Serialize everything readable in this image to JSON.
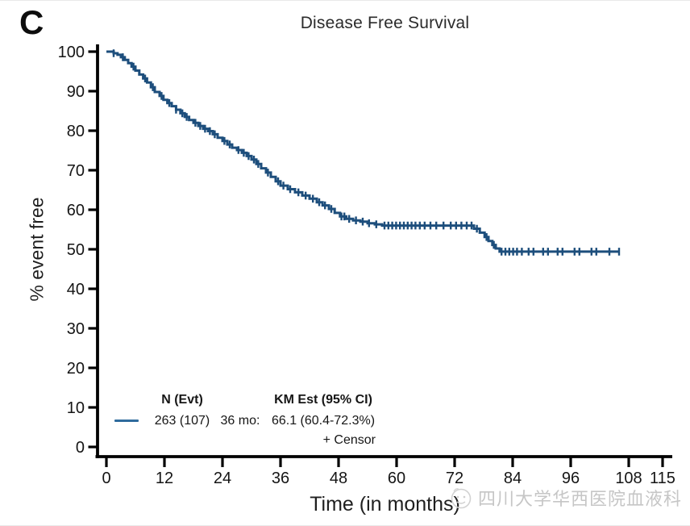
{
  "panel_label": "C",
  "chart_data": {
    "type": "line",
    "subtype": "kaplan-meier-step-curve",
    "title": "Disease Free Survival",
    "xlabel": "Time (in months)",
    "ylabel": "% event free",
    "xlim": [
      0,
      115
    ],
    "ylim": [
      0,
      100
    ],
    "x_ticks": [
      0,
      12,
      24,
      36,
      48,
      60,
      72,
      84,
      96,
      108,
      115
    ],
    "y_ticks": [
      0,
      10,
      20,
      30,
      40,
      50,
      60,
      70,
      80,
      90,
      100
    ],
    "grid": false,
    "legend_position": "bottom-left-inside",
    "axis_color": "#000000",
    "series": [
      {
        "name": "263 (107)",
        "n": 263,
        "events": 107,
        "color": "#1d4e7c",
        "km_estimate": {
          "timepoint_months": 36,
          "estimate_pct": 66.1,
          "ci95_pct": [
            60.4,
            72.3
          ]
        },
        "steps": [
          [
            0,
            100
          ],
          [
            1.5,
            99.6
          ],
          [
            2.3,
            99.2
          ],
          [
            3,
            98.6
          ],
          [
            3.8,
            97.9
          ],
          [
            4.5,
            97.1
          ],
          [
            5.2,
            96.2
          ],
          [
            6,
            95.2
          ],
          [
            6.8,
            94.2
          ],
          [
            7.6,
            93.2
          ],
          [
            8.4,
            92.2
          ],
          [
            9.2,
            91.0
          ],
          [
            10,
            89.8
          ],
          [
            11,
            88.8
          ],
          [
            11.8,
            87.8
          ],
          [
            12.6,
            87.0
          ],
          [
            13.5,
            86.2
          ],
          [
            14.4,
            85.3
          ],
          [
            15.3,
            84.4
          ],
          [
            16.2,
            83.5
          ],
          [
            17.1,
            82.7
          ],
          [
            18,
            82.0
          ],
          [
            19,
            81.2
          ],
          [
            20,
            80.5
          ],
          [
            21,
            79.9
          ],
          [
            22,
            79.1
          ],
          [
            23,
            78.2
          ],
          [
            24,
            77.4
          ],
          [
            25,
            76.5
          ],
          [
            26,
            75.7
          ],
          [
            27,
            75.1
          ],
          [
            28,
            74.4
          ],
          [
            29,
            73.6
          ],
          [
            30,
            72.7
          ],
          [
            31,
            71.6
          ],
          [
            32,
            70.5
          ],
          [
            33,
            69.4
          ],
          [
            34,
            68.3
          ],
          [
            35,
            67.2
          ],
          [
            36,
            66.1
          ],
          [
            37.5,
            65.2
          ],
          [
            39,
            64.4
          ],
          [
            40.5,
            63.6
          ],
          [
            42,
            62.8
          ],
          [
            43.5,
            61.9
          ],
          [
            44.7,
            61.1
          ],
          [
            46,
            60.2
          ],
          [
            47.2,
            59.2
          ],
          [
            48.3,
            58.3
          ],
          [
            49.6,
            57.7
          ],
          [
            51,
            57.3
          ],
          [
            52.5,
            57.0
          ],
          [
            54,
            56.6
          ],
          [
            55.5,
            56.3
          ],
          [
            57,
            56.0
          ],
          [
            76,
            55.2
          ],
          [
            77.2,
            54.2
          ],
          [
            78.2,
            53.1
          ],
          [
            79,
            52.1
          ],
          [
            79.8,
            51.1
          ],
          [
            80.5,
            50.2
          ],
          [
            81.3,
            49.4
          ]
        ],
        "end_time": 106,
        "censor_times": [
          1.5,
          3.4,
          5.6,
          8,
          9.6,
          11.4,
          13,
          14.4,
          15.7,
          16.6,
          18.4,
          19.4,
          20.4,
          21.4,
          22.4,
          24.4,
          25.5,
          27.3,
          28.4,
          29.4,
          30.5,
          31.4,
          33.4,
          35.5,
          36.6,
          38,
          39.7,
          41.2,
          42.7,
          44,
          45.2,
          46.5,
          48.6,
          49.2,
          50.2,
          51.6,
          53,
          54.3,
          55.8,
          57.5,
          58.3,
          59.1,
          59.9,
          60.7,
          61.5,
          62.3,
          63.1,
          63.9,
          64.8,
          65.8,
          67,
          68.2,
          69.7,
          71.2,
          72.3,
          73.4,
          74.5,
          75.5,
          76.6,
          78.6,
          80.1,
          81.7,
          82.5,
          83.3,
          84.1,
          84.9,
          85.9,
          87.3,
          88.3,
          90.3,
          91.3,
          93.3,
          94.3,
          96.8,
          97.8,
          100.3,
          101.3,
          104,
          106
        ]
      }
    ]
  },
  "legend": {
    "n_header": "N (Evt)",
    "km_header": "KM Est (95% CI)",
    "n_value": "263 (107)",
    "timepoint": "36 mo:",
    "km_value": "66.1 (60.4-72.3%)",
    "censor_note": "+ Censor",
    "swatch_color": "#2f6b9d"
  },
  "watermark": {
    "text": "四川大学华西医院血液科",
    "color": "#c6c6c6",
    "logo": "smiley-badge"
  }
}
